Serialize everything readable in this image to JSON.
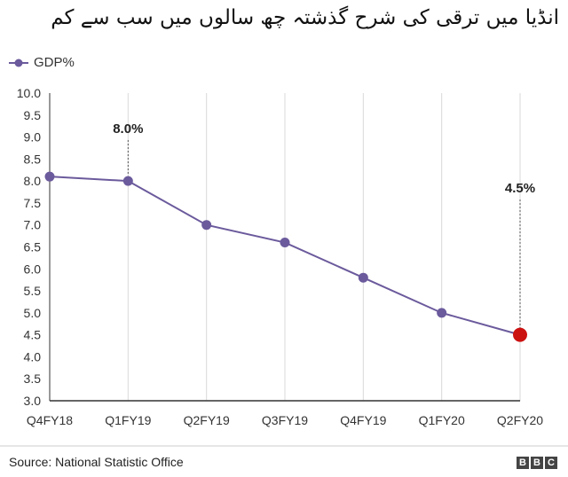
{
  "title": "انڈیا میں ترقی کی شرح گذشتہ چھ سالوں میں سب سے کم",
  "legend": {
    "label": "GDP%"
  },
  "source": "Source: National Statistic Office",
  "brand": {
    "letters": [
      "B",
      "B",
      "C"
    ]
  },
  "colors": {
    "line": "#6b5a9c",
    "highlight": "#cc1111",
    "grid": "#d9d9d9",
    "axis": "#333333"
  },
  "chart_data": {
    "type": "line",
    "categories": [
      "Q4FY18",
      "Q1FY19",
      "Q2FY19",
      "Q3FY19",
      "Q4FY19",
      "Q1FY20",
      "Q2FY20"
    ],
    "series": [
      {
        "name": "GDP%",
        "values": [
          8.1,
          8.0,
          7.0,
          6.6,
          5.8,
          5.0,
          4.5
        ]
      }
    ],
    "ylim": [
      3.0,
      10.0
    ],
    "yticks": [
      "3.0",
      "3.5",
      "4.0",
      "4.5",
      "5.0",
      "5.5",
      "6.0",
      "6.5",
      "7.0",
      "7.5",
      "8.0",
      "8.5",
      "9.0",
      "9.5",
      "10.0"
    ],
    "annotations": [
      {
        "category": "Q1FY19",
        "text": "8.0%"
      },
      {
        "category": "Q2FY20",
        "text": "4.5%"
      }
    ],
    "highlight_category": "Q2FY20",
    "grid": true,
    "legend_position": "top-left"
  }
}
